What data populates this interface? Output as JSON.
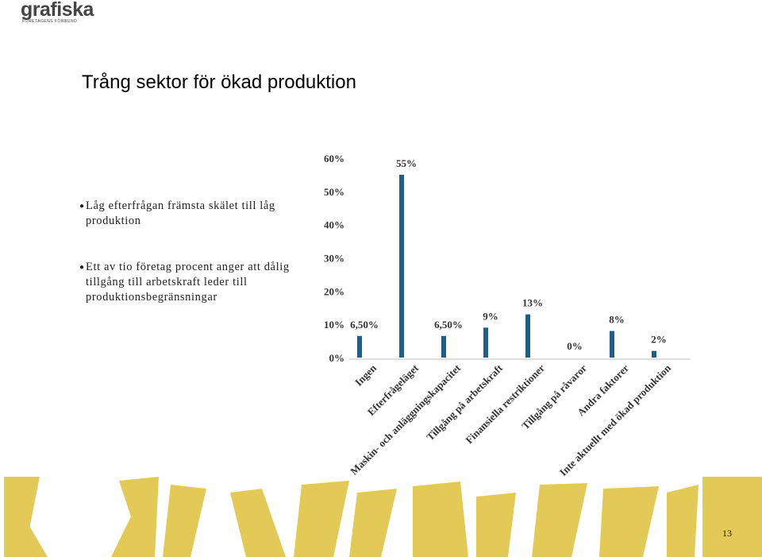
{
  "slide": {
    "logo": "grafiska",
    "logo_sub": "FÖRETAGENS FÖRBUND",
    "title": "Trång sektor för ökad produktion",
    "bullets": [
      "Låg efterfrågan främsta skälet till låg produktion",
      "Ett av tio företag procent anger att dålig tillgång till arbetskraft leder till produktionsbegränsningar"
    ],
    "page_number": "13"
  },
  "chart_data": {
    "type": "bar",
    "categories": [
      "Ingen",
      "Efterfrågeläget",
      "Maskin- och anläggningskapacitet",
      "Tillgång på arbetskraft",
      "Finansiella restriktioner",
      "Tillgång på råvaror",
      "Andra faktorer",
      "Inte aktuellt med ökad produktion"
    ],
    "values": [
      6.5,
      55,
      6.5,
      9,
      13,
      0,
      8,
      2
    ],
    "value_labels": [
      "6,50%",
      "55%",
      "6,50%",
      "9%",
      "13%",
      "0%",
      "8%",
      "2%"
    ],
    "color": "#1f5f85",
    "ylim": [
      0,
      60
    ],
    "yticks": [
      {
        "value": 0,
        "label": "0%"
      },
      {
        "value": 10,
        "label": "10%"
      },
      {
        "value": 20,
        "label": "20%"
      },
      {
        "value": 30,
        "label": "30%"
      },
      {
        "value": 40,
        "label": "40%"
      },
      {
        "value": 50,
        "label": "50%"
      },
      {
        "value": 60,
        "label": "60%"
      }
    ]
  }
}
